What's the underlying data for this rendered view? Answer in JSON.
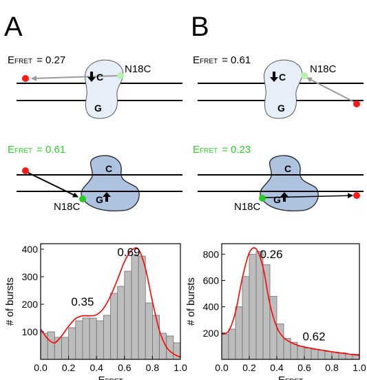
{
  "panels": {
    "A": {
      "letter": "A",
      "top_state": {
        "e_label": "E",
        "e_sub": "FRET",
        "e_value": "= 0.27",
        "site_label": "N18C",
        "c_label": "C",
        "g_label": "G"
      },
      "mid_state": {
        "e_label": "E",
        "e_sub": "FRET",
        "e_value": "= 0.61",
        "site_label": "N18C",
        "c_label": "C",
        "g_label": "G"
      }
    },
    "B": {
      "letter": "B",
      "top_state": {
        "e_label": "E",
        "e_sub": "FRET",
        "e_value": "= 0.61",
        "site_label": "N18C",
        "c_label": "C",
        "g_label": "G"
      },
      "mid_state": {
        "e_label": "E",
        "e_sub": "FRET",
        "e_value": "= 0.23",
        "site_label": "N18C",
        "c_label": "C",
        "g_label": "G"
      }
    }
  },
  "colors": {
    "membrane": "#000000",
    "protein_light": "#e6eef8",
    "protein_dark": "#aec3e0",
    "acceptor": "#ff1a1a",
    "donor_light": "#b8f0b0",
    "donor_bright": "#22cc22",
    "green_text": "#2ecc2e",
    "arrow_gray": "#9a9a9a",
    "bar_fill": "#bdbdbd",
    "fit_line": "#ff0000"
  },
  "chart_data": [
    {
      "type": "bar",
      "panel": "A",
      "bin_edges": [
        0.0,
        0.05,
        0.1,
        0.15,
        0.2,
        0.25,
        0.3,
        0.35,
        0.4,
        0.45,
        0.5,
        0.55,
        0.6,
        0.65,
        0.7,
        0.75,
        0.8,
        0.85,
        0.9,
        0.95,
        1.0
      ],
      "values": [
        95,
        100,
        80,
        80,
        115,
        140,
        150,
        150,
        140,
        160,
        240,
        265,
        320,
        380,
        375,
        205,
        160,
        95,
        85,
        60
      ],
      "fit_x": [
        0.0,
        0.05,
        0.1,
        0.15,
        0.2,
        0.25,
        0.3,
        0.35,
        0.4,
        0.45,
        0.5,
        0.55,
        0.6,
        0.65,
        0.7,
        0.75,
        0.8,
        0.85,
        0.9,
        0.95,
        1.0
      ],
      "fit_y": [
        110,
        75,
        60,
        85,
        120,
        148,
        158,
        158,
        162,
        185,
        230,
        290,
        355,
        395,
        400,
        330,
        210,
        105,
        45,
        20,
        8
      ],
      "xlabel": "E",
      "xlabel_sub": "FRET",
      "ylabel": "# of bursts",
      "xlim": [
        0.0,
        1.0
      ],
      "ylim": [
        0,
        420
      ],
      "xticks": [
        "0.0",
        "0.2",
        "0.4",
        "0.6",
        "0.8",
        "1.0"
      ],
      "yticks": [
        "100",
        "200",
        "300",
        "400"
      ],
      "annotations": [
        {
          "text": "0.35",
          "x": 0.3,
          "y": 195
        },
        {
          "text": "0.69",
          "x": 0.63,
          "y": 375
        }
      ]
    },
    {
      "type": "bar",
      "panel": "B",
      "bin_edges": [
        0.0,
        0.05,
        0.1,
        0.15,
        0.2,
        0.25,
        0.3,
        0.35,
        0.4,
        0.45,
        0.5,
        0.55,
        0.6,
        0.65,
        0.7,
        0.75,
        0.8,
        0.85,
        0.9,
        0.95,
        1.0
      ],
      "values": [
        190,
        230,
        400,
        630,
        800,
        820,
        720,
        480,
        270,
        160,
        130,
        100,
        85,
        75,
        70,
        60,
        55,
        50,
        40,
        40
      ],
      "fit_x": [
        0.0,
        0.05,
        0.1,
        0.15,
        0.2,
        0.25,
        0.3,
        0.35,
        0.4,
        0.45,
        0.5,
        0.55,
        0.6,
        0.65,
        0.7,
        0.75,
        0.8,
        0.85,
        0.9,
        0.95,
        1.0
      ],
      "fit_y": [
        195,
        215,
        360,
        620,
        810,
        840,
        700,
        420,
        245,
        165,
        130,
        108,
        94,
        84,
        75,
        66,
        58,
        50,
        44,
        36,
        30
      ],
      "xlabel": "E",
      "xlabel_sub": "FRET",
      "ylabel": "# of bursts",
      "xlim": [
        0.0,
        1.0
      ],
      "ylim": [
        0,
        880
      ],
      "xticks": [
        "0.0",
        "0.2",
        "0.4",
        "0.6",
        "0.8",
        "1.0"
      ],
      "yticks": [
        "200",
        "400",
        "600",
        "800"
      ],
      "annotations": [
        {
          "text": "0.26",
          "x": 0.36,
          "y": 770
        },
        {
          "text": "0.62",
          "x": 0.67,
          "y": 145
        }
      ]
    }
  ]
}
